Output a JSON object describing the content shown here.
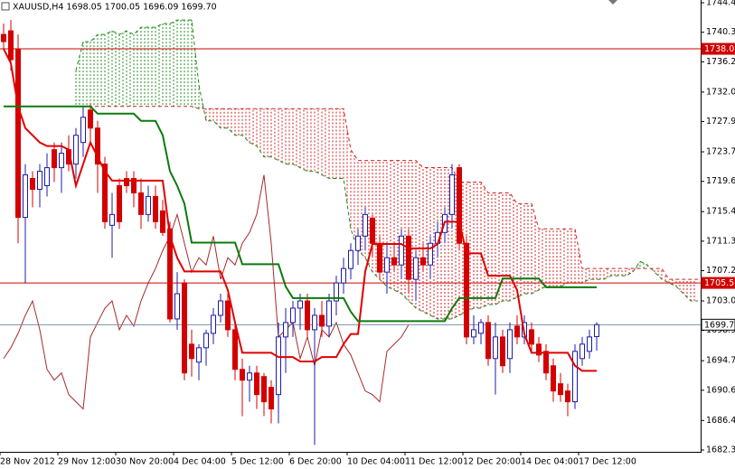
{
  "chart_data": {
    "type": "candlestick",
    "title": "XAUUSD,H4  1698.05 1700.05 1696.09 1699.70",
    "categories": [
      "28 Nov 2012",
      null,
      null,
      null,
      null,
      null,
      null,
      null,
      "29 Nov 12:00",
      null,
      null,
      null,
      null,
      null,
      null,
      null,
      "30 Nov 20:00",
      null,
      null,
      null,
      null,
      null,
      null,
      null,
      "4 Dec 04:00",
      null,
      null,
      null,
      null,
      null,
      null,
      null,
      "5 Dec 12:00",
      null,
      null,
      null,
      null,
      null,
      null,
      null,
      "6 Dec 20:00",
      null,
      null,
      null,
      null,
      null,
      null,
      null,
      "10 Dec 04:00",
      null,
      null,
      null,
      null,
      null,
      null,
      null,
      "11 Dec 12:00",
      null,
      null,
      null,
      null,
      null,
      null,
      null,
      "12 Dec 20:00",
      null,
      null,
      null,
      null,
      null,
      null,
      null,
      "14 Dec 04:00",
      null,
      null,
      null,
      null,
      null,
      null,
      null,
      "17 Dec 12:00",
      null,
      null,
      null,
      null,
      null,
      null,
      null,
      null,
      null,
      null,
      null,
      null,
      null,
      null,
      null,
      null
    ],
    "open": [
      1740,
      1740.5,
      1738,
      1714.6,
      1720,
      1718.5,
      1719,
      1724,
      1721.5,
      1724,
      1722,
      1725,
      1729.5,
      1727,
      1722,
      1713.5,
      1719,
      1720,
      1720,
      1718,
      1715,
      1717.5,
      1715.5,
      1713,
      1700.5,
      1705.5,
      1697,
      1694.5,
      1696.5,
      1698.5,
      1701,
      1703,
      1699,
      1693.5,
      1692,
      1693,
      1692.5,
      1691,
      1690,
      1698,
      1700,
      1702,
      1703,
      1699,
      1701,
      1699.5,
      1703,
      1705.5,
      1707.5,
      1710,
      1712,
      1714.5,
      1711,
      1707,
      1709,
      1708,
      1712,
      1706,
      1709,
      1708,
      1711,
      1712.5,
      1715,
      1721.5,
      1711,
      1698,
      1698.5,
      1700,
      1695,
      1698,
      1695,
      1699.5,
      1698,
      1699,
      1697,
      1696,
      1694,
      1691.5,
      1690.5,
      1689,
      1695,
      1696,
      1698.05,
      null,
      null,
      null,
      null,
      null,
      null,
      null,
      null,
      null,
      null,
      null,
      null,
      null,
      null
    ],
    "high": [
      1741.5,
      1742,
      1740,
      1722,
      1721,
      1722,
      1723.5,
      1725,
      1725,
      1726,
      1727,
      1730,
      1730.5,
      1728,
      1723,
      1718,
      1720,
      1721,
      1721,
      1720,
      1719,
      1719,
      1717,
      1714,
      1707,
      1706,
      1699,
      1697,
      1699,
      1702,
      1704,
      1704,
      1700,
      1695,
      1694,
      1694,
      1693,
      1692,
      1700,
      1702,
      1703,
      1704,
      1704,
      1702,
      1703,
      1704,
      1706.5,
      1709,
      1711,
      1713,
      1716,
      1715,
      1712,
      1711,
      1711,
      1713,
      1713,
      1710,
      1711,
      1712,
      1714,
      1716,
      1722,
      1722,
      1712,
      1701,
      1700.5,
      1701,
      1700,
      1699,
      1700,
      1701,
      1701,
      1700,
      1698,
      1697,
      1695,
      1693,
      1691.5,
      1697,
      1698,
      1699,
      1700.05,
      null,
      null,
      null,
      null,
      null,
      null,
      null,
      null,
      null,
      null,
      null,
      null,
      null,
      null
    ],
    "low": [
      1738,
      1735,
      1711,
      1705.5,
      1716,
      1716,
      1717.5,
      1719.5,
      1718,
      1721,
      1720,
      1723,
      1725,
      1718,
      1713,
      1709,
      1713,
      1718,
      1716,
      1713,
      1714,
      1713,
      1712,
      1700,
      1699,
      1692,
      1692.5,
      1692,
      1694,
      1697,
      1700,
      1698,
      1692,
      1687,
      1689,
      1688,
      1687,
      1686,
      1686,
      1693,
      1698,
      1699,
      1698,
      1683,
      1698,
      1698,
      1701,
      1704,
      1706,
      1708,
      1710,
      1709,
      1706,
      1704,
      1707,
      1706,
      1704,
      1703,
      1707,
      1706,
      1709,
      1711,
      1713,
      1710,
      1697,
      1697,
      1697,
      1694,
      1690,
      1693,
      1693,
      1697,
      1697,
      1696,
      1694.5,
      1692,
      1689,
      1689,
      1687,
      1688,
      1694,
      1695,
      1696.09,
      null,
      null,
      null,
      null,
      null,
      null,
      null,
      null,
      null,
      null,
      null,
      null,
      null,
      null
    ],
    "close": [
      1739,
      1736.5,
      1714.6,
      1720.5,
      1718.5,
      1721,
      1721.5,
      1721.5,
      1723.5,
      1722,
      1726,
      1728.5,
      1727,
      1722,
      1714,
      1715,
      1714,
      1719,
      1718,
      1715,
      1717.5,
      1714,
      1712.5,
      1700.5,
      1704,
      1693,
      1695,
      1696.5,
      1698.5,
      1701,
      1703,
      1699,
      1693.5,
      1692,
      1693,
      1690,
      1689,
      1688,
      1698,
      1700,
      1702,
      1703,
      1699,
      1701,
      1699.5,
      1703,
      1705.5,
      1707.5,
      1710,
      1712,
      1715,
      1711,
      1707,
      1709,
      1708,
      1712,
      1706,
      1709,
      1708,
      1711,
      1712.5,
      1715,
      1720.5,
      1711,
      1698,
      1699,
      1700,
      1695,
      1698,
      1694,
      1699,
      1698,
      1700,
      1697,
      1695.5,
      1693,
      1690.5,
      1690,
      1689,
      1696,
      1697,
      1698,
      1699.7,
      null,
      null,
      null,
      null,
      null,
      null,
      null,
      null,
      null,
      null,
      null,
      null,
      null,
      null
    ],
    "up_color": "#1c1ca8",
    "down_color": "#d40000",
    "cloud": {
      "a": [
        null,
        null,
        null,
        null,
        null,
        null,
        null,
        null,
        null,
        null,
        1735,
        1739,
        1739,
        1740,
        1740,
        1740.5,
        1740,
        1740.5,
        1740,
        1741,
        1741,
        1741,
        1741.5,
        1741.5,
        1742,
        1742,
        1742,
        1733,
        1728,
        1728,
        1727,
        1727,
        1726,
        1726,
        1725,
        1724.5,
        1723,
        1723,
        1722.5,
        1722,
        1722,
        1721.5,
        1721,
        1721,
        1720.5,
        1720,
        1720,
        1720,
        1713,
        1710,
        1709,
        1707,
        1706,
        1705,
        1704.5,
        1704,
        1703,
        1702,
        1701.5,
        1701,
        1700.5,
        1700.5,
        1700.5,
        1701,
        1701.5,
        1702,
        1702,
        1702.5,
        1702.5,
        1703,
        1703,
        1703.5,
        1704,
        1704,
        1704.5,
        1705,
        1705,
        1705,
        1705.5,
        1705.5,
        1705.5,
        1706,
        1706,
        1706,
        1706.5,
        1706.5,
        1706.5,
        1707,
        1708.5,
        1708,
        1707,
        1706,
        1705.5,
        1705,
        1704,
        1703,
        1703
      ],
      "b": [
        null,
        null,
        null,
        null,
        null,
        null,
        null,
        null,
        null,
        null,
        1730,
        1730,
        1730,
        1730,
        1730,
        1730,
        1730,
        1730,
        1730,
        1730,
        1730,
        1730,
        1730,
        1730,
        1730,
        1730,
        1730,
        1729.7,
        1729.7,
        1729.7,
        1729.7,
        1729.7,
        1729.7,
        1729.7,
        1729.7,
        1729.7,
        1729.7,
        1729.7,
        1729.7,
        1729.7,
        1729.7,
        1729.7,
        1729.7,
        1729.7,
        1729.7,
        1729.7,
        1729.7,
        1729.7,
        1724,
        1722.5,
        1722.5,
        1722.5,
        1722.5,
        1722.5,
        1722.5,
        1722.5,
        1722.5,
        1722.5,
        1721.5,
        1721.5,
        1721.5,
        1721.5,
        1721.5,
        1719.5,
        1719.5,
        1719.5,
        1719.5,
        1718,
        1718,
        1718,
        1718,
        1716.5,
        1716.5,
        1716.5,
        1713,
        1713,
        1713,
        1713,
        1713,
        1713,
        1707.5,
        1707.5,
        1707.5,
        1707.5,
        1707.5,
        1707.5,
        1707.5,
        1707.5,
        1707.5,
        1707.5,
        1707.5,
        1707.5,
        1706,
        1706,
        1706,
        1706,
        1706
      ],
      "up_color": "#1f8a1f",
      "down_color": "#d02020"
    },
    "series": [
      {
        "color": "#a52a2a",
        "width": 1,
        "values": [
          1695,
          1696.5,
          1698.5,
          1701,
          1703,
          1699,
          1693.5,
          1692,
          1693,
          1690,
          1689,
          1688,
          1698,
          1700,
          1702,
          1703,
          1699,
          1701,
          1699.5,
          1703,
          1705.5,
          1707.5,
          1710,
          1712,
          1715,
          1711,
          1707,
          1709,
          1708,
          1712,
          1706,
          1709,
          1708,
          1711,
          1712.5,
          1715,
          1720.5,
          1711,
          1698,
          1699,
          1700,
          1695,
          1698,
          1694,
          1699,
          1698,
          1700,
          1697,
          1695.5,
          1693,
          1690.5,
          1690,
          1689,
          1696,
          1697,
          1698,
          1699.7,
          null,
          null,
          null,
          null,
          null,
          null,
          null,
          null,
          null,
          null,
          null,
          null,
          null,
          null,
          null,
          null,
          null,
          null,
          null,
          null,
          null,
          null,
          null,
          null,
          null,
          null,
          null,
          null,
          null,
          null,
          null,
          null,
          null,
          null,
          null,
          null,
          null,
          null,
          null,
          null
        ]
      },
      {
        "color": "#e00000",
        "width": 2,
        "values": [
          1738,
          1736,
          1730,
          1727,
          1726,
          1725,
          1724.5,
          1724.5,
          1724.5,
          1724,
          1719,
          1722,
          1725,
          1723,
          1721,
          1719.7,
          1719.7,
          1719.7,
          1719.7,
          1719.7,
          1719.7,
          1719.7,
          1719.7,
          1712,
          1709,
          1707.1,
          1707.1,
          1707.1,
          1707.1,
          1707.1,
          1707.1,
          1704.5,
          1700,
          1695.8,
          1695.8,
          1695.8,
          1695.8,
          1695.8,
          1695.2,
          1695.2,
          1695.2,
          1694.6,
          1694.6,
          1694.6,
          1695.2,
          1695.2,
          1695.2,
          1697,
          1698.4,
          1698.4,
          1707.1,
          1710.9,
          1710.9,
          1710.9,
          1710.9,
          1710.9,
          1710.3,
          1710.3,
          1710.3,
          1710.3,
          1710.9,
          1714,
          1714,
          1714,
          1709.6,
          1709.6,
          1709.6,
          1706.5,
          1706.5,
          1706.5,
          1706.5,
          1704.5,
          1698.4,
          1695.8,
          1695.8,
          1695.8,
          1695.8,
          1695.8,
          1695.8,
          1694,
          1693.3,
          1693.3,
          1693.3,
          null,
          null,
          null,
          null,
          null,
          null,
          null,
          null,
          null,
          null,
          null,
          null,
          null,
          null
        ]
      },
      {
        "color": "#0d7a0d",
        "width": 2,
        "values": [
          1730,
          1730,
          1730,
          1730,
          1730,
          1730,
          1730,
          1730,
          1730,
          1730,
          1730,
          1730,
          1730,
          1729,
          1729,
          1729,
          1729,
          1729,
          1729,
          1728,
          1728,
          1728,
          1726,
          1721,
          1719,
          1716.5,
          1711.1,
          1711.1,
          1711.1,
          1711.1,
          1711.1,
          1711.1,
          1711.1,
          1708.1,
          1708.1,
          1708.1,
          1708.1,
          1708.1,
          1708.1,
          1705,
          1703.4,
          1703.4,
          1703.4,
          1703.4,
          1703.4,
          1703.4,
          1703.4,
          1703.4,
          1701.5,
          1700.2,
          1700.2,
          1700.2,
          1700.2,
          1700.2,
          1700.2,
          1700.2,
          1700.2,
          1700.2,
          1700.2,
          1700.2,
          1700.2,
          1700.2,
          1702,
          1703.4,
          1703.4,
          1703.4,
          1703.4,
          1703.4,
          1703.4,
          1706.1,
          1706.1,
          1706.1,
          1706.1,
          1706.1,
          1706.1,
          1704.9,
          1704.9,
          1704.9,
          1704.9,
          1704.9,
          1704.9,
          1704.9,
          1704.9,
          null,
          null,
          null,
          null,
          null,
          null,
          null,
          null,
          null,
          null,
          null,
          null,
          null,
          null
        ]
      }
    ],
    "hlines": [
      {
        "value": 1738,
        "label": "1738.00",
        "color": "#d00000",
        "label_bg": "#d00000",
        "label_color": "#ffffff"
      },
      {
        "value": 1705.5,
        "label": "1705.50",
        "color": "#d00000",
        "label_bg": "#d00000",
        "label_color": "#ffffff"
      },
      {
        "value": 1699.7,
        "label": "1699.70",
        "color": "#7890a8",
        "label_bg": "#ffffff",
        "label_color": "#000000"
      }
    ],
    "ylim": [
      1682.05,
      1744.78
    ],
    "yticks": [
      {
        "value": 1744.4,
        "label": "1744.40"
      },
      {
        "value": 1740.3,
        "label": "1740.30"
      },
      {
        "value": 1736.2,
        "label": "1736.20"
      },
      {
        "value": 1732,
        "label": "1732.00"
      },
      {
        "value": 1727.9,
        "label": "1727.90"
      },
      {
        "value": 1723.7,
        "label": "1723.70"
      },
      {
        "value": 1719.6,
        "label": "1719.60"
      },
      {
        "value": 1715.4,
        "label": "1715.40"
      },
      {
        "value": 1711.3,
        "label": "1711.30"
      },
      {
        "value": 1707.2,
        "label": "1707.20"
      },
      {
        "value": 1703,
        "label": "1703.00"
      },
      {
        "value": 1698.9,
        "label": "1698.90"
      },
      {
        "value": 1694.7,
        "label": "1694.70"
      },
      {
        "value": 1690.6,
        "label": "1690.60"
      },
      {
        "value": 1686.4,
        "label": "1686.40"
      },
      {
        "value": 1682.3,
        "label": "1682.30"
      }
    ]
  }
}
